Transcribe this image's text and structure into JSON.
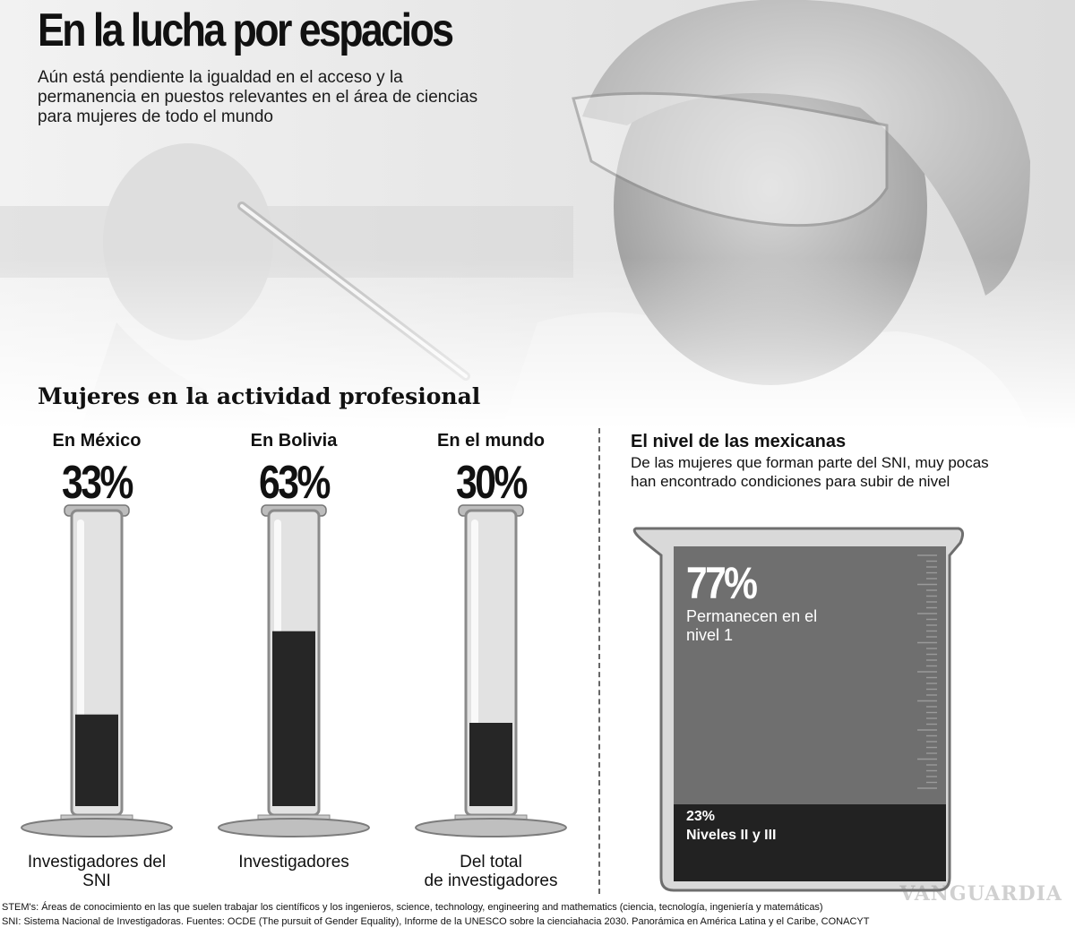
{
  "header": {
    "title": "En la lucha por espacios",
    "subtitle": "Aún está pendiente la igualdad en el acceso y la permanencia en puestos relevantes en el área de ciencias para mujeres de todo el mundo"
  },
  "section": {
    "title": "Mujeres en la actividad profesional"
  },
  "beaker": {
    "title": "El nivel de las mexicanas",
    "description": "De las mujeres que forman parte del SNI, muy pocas han encontrado condiciones para subir de nivel"
  },
  "chart_data": [
    {
      "type": "bar",
      "title": "Mujeres en la actividad profesional",
      "categories": [
        "En México",
        "En Bolivia",
        "En el mundo"
      ],
      "values": [
        33,
        63,
        30
      ],
      "value_labels": [
        "33%",
        "63%",
        "30%"
      ],
      "captions": [
        "Investigadores del SNI",
        "Investigadores",
        "Del total de investigadores"
      ],
      "ylim": [
        0,
        100
      ]
    },
    {
      "type": "bar",
      "title": "El nivel de las mexicanas",
      "stacked": true,
      "segments": [
        {
          "label": "Permanecen en el nivel 1",
          "value": 77,
          "value_label": "77%"
        },
        {
          "label": "Niveles II y III",
          "value": 23,
          "value_label": "23%"
        }
      ],
      "ylim": [
        0,
        100
      ]
    }
  ],
  "footnotes": {
    "stem": "STEM's: Áreas de conocimiento en las que suelen trabajar los científicos y los ingenieros, science, technology, engineering and mathematics (ciencia, tecnología, ingeniería y matemáticas)",
    "sni": "SNI: Sistema Nacional de Investigadoras. Fuentes: OCDE (The pursuit of Gender Equality), Informe de la UNESCO sobre la cienciahacia 2030. Panorámica en América Latina y el Caribe, CONACYT"
  },
  "watermark": "VANGUARDIA",
  "colors": {
    "liquid": "#262626",
    "glass": "#cfcfcf",
    "beaker_upper": "#6f6f6f",
    "beaker_lower": "#222222"
  }
}
